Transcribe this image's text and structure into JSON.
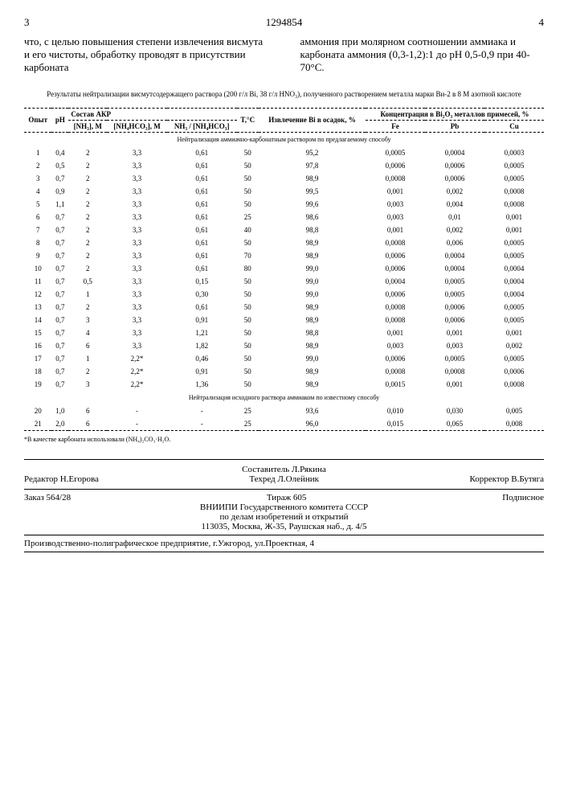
{
  "header": {
    "pageLeft": "3",
    "docNum": "1294854",
    "pageRight": "4"
  },
  "topText": {
    "left": "что, с целью повышения степени извлечения висмута и его чистоты, обработку проводят в присутствии карбоната",
    "right": "аммония при молярном соотношении аммиака и карбоната аммония (0,3-1,2):1 до pH 0,5-0,9 при 40-70°С."
  },
  "caption": "Результаты нейтрализации висмутсодержащего раствора (200 г/л Bi, 38 г/л HNO₃), полученного растворением металла марки Ви-2 в 8 М азотной кислоте",
  "cols": {
    "c1": "Опыт",
    "c2": "pH",
    "c3": "Состав АКР",
    "c3a": "[NH₃], М",
    "c3b": "[NH₄HCO₃], М",
    "c3c": "NH₃ / [NH₄HCO₃]",
    "c4": "T,°C",
    "c5": "Извлечение Bi в осадок, %",
    "c6": "Концентрация в Bi₂O₃ металлов примесей, %",
    "c6a": "Fe",
    "c6b": "Pb",
    "c6c": "Cu"
  },
  "section1": "Нейтрализация аммиачно-карбонатным раствором по предлагаемому способу",
  "section2": "Нейтрализация исходного раствора аммиаком по известному способу",
  "rows1": [
    [
      "1",
      "0,4",
      "2",
      "3,3",
      "0,61",
      "50",
      "95,2",
      "0,0005",
      "0,0004",
      "0,0003"
    ],
    [
      "2",
      "0,5",
      "2",
      "3,3",
      "0,61",
      "50",
      "97,8",
      "0,0006",
      "0,0006",
      "0,0005"
    ],
    [
      "3",
      "0,7",
      "2",
      "3,3",
      "0,61",
      "50",
      "98,9",
      "0,0008",
      "0,0006",
      "0,0005"
    ],
    [
      "4",
      "0,9",
      "2",
      "3,3",
      "0,61",
      "50",
      "99,5",
      "0,001",
      "0,002",
      "0,0008"
    ],
    [
      "5",
      "1,1",
      "2",
      "3,3",
      "0,61",
      "50",
      "99,6",
      "0,003",
      "0,004",
      "0,0008"
    ],
    [
      "6",
      "0,7",
      "2",
      "3,3",
      "0,61",
      "25",
      "98,6",
      "0,003",
      "0,01",
      "0,001"
    ],
    [
      "7",
      "0,7",
      "2",
      "3,3",
      "0,61",
      "40",
      "98,8",
      "0,001",
      "0,002",
      "0,001"
    ],
    [
      "8",
      "0,7",
      "2",
      "3,3",
      "0,61",
      "50",
      "98,9",
      "0,0008",
      "0,006",
      "0,0005"
    ],
    [
      "9",
      "0,7",
      "2",
      "3,3",
      "0,61",
      "70",
      "98,9",
      "0,0006",
      "0,0004",
      "0,0005"
    ],
    [
      "10",
      "0,7",
      "2",
      "3,3",
      "0,61",
      "80",
      "99,0",
      "0,0006",
      "0,0004",
      "0,0004"
    ],
    [
      "11",
      "0,7",
      "0,5",
      "3,3",
      "0,15",
      "50",
      "99,0",
      "0,0004",
      "0,0005",
      "0,0004"
    ],
    [
      "12",
      "0,7",
      "1",
      "3,3",
      "0,30",
      "50",
      "99,0",
      "0,0006",
      "0,0005",
      "0,0004"
    ],
    [
      "13",
      "0,7",
      "2",
      "3,3",
      "0,61",
      "50",
      "98,9",
      "0,0008",
      "0,0006",
      "0,0005"
    ],
    [
      "14",
      "0,7",
      "3",
      "3,3",
      "0,91",
      "50",
      "98,9",
      "0,0008",
      "0,0006",
      "0,0005"
    ],
    [
      "15",
      "0,7",
      "4",
      "3,3",
      "1,21",
      "50",
      "98,8",
      "0,001",
      "0,001",
      "0,001"
    ],
    [
      "16",
      "0,7",
      "6",
      "3,3",
      "1,82",
      "50",
      "98,9",
      "0,003",
      "0,003",
      "0,002"
    ],
    [
      "17",
      "0,7",
      "1",
      "2,2*",
      "0,46",
      "50",
      "99,0",
      "0,0006",
      "0,0005",
      "0,0005"
    ],
    [
      "18",
      "0,7",
      "2",
      "2,2*",
      "0,91",
      "50",
      "98,9",
      "0,0008",
      "0,0008",
      "0,0006"
    ],
    [
      "19",
      "0,7",
      "3",
      "2,2*",
      "1,36",
      "50",
      "98,9",
      "0,0015",
      "0,001",
      "0,0008"
    ]
  ],
  "rows2": [
    [
      "20",
      "1,0",
      "6",
      "-",
      "-",
      "25",
      "93,6",
      "0,010",
      "0,030",
      "0,005"
    ],
    [
      "21",
      "2,0",
      "6",
      "-",
      "-",
      "25",
      "96,0",
      "0,015",
      "0,065",
      "0,008"
    ]
  ],
  "footnote": "*В качестве карбоната использовали (NH₄)₂CO₃·H₂O.",
  "credits": {
    "compiler": "Составитель Л.Рякина",
    "editor": "Редактор Н.Егорова",
    "tech": "Техред Л.Олейник",
    "corrector": "Корректор В.Бутяга"
  },
  "order": {
    "orderNo": "Заказ 564/28",
    "tirazh": "Тираж 605",
    "signed": "Подписное",
    "org1": "ВНИИПИ Государственного комитета СССР",
    "org2": "по делам изобретений и открытий",
    "addr": "113035, Москва, Ж-35, Раушская наб., д. 4/5"
  },
  "footer": "Производственно-полиграфическое предприятие, г.Ужгород, ул.Проектная, 4"
}
